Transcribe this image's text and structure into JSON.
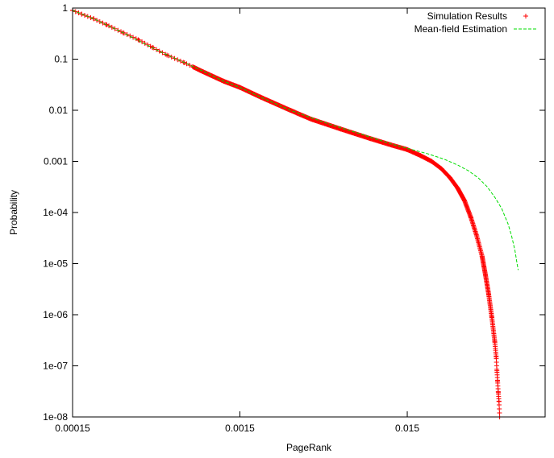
{
  "chart_data": {
    "type": "scatter",
    "title": "",
    "xlabel": "PageRank",
    "ylabel": "Probability",
    "xscale": "log",
    "yscale": "log",
    "xlim": [
      0.00015,
      0.1
    ],
    "ylim": [
      1e-08,
      1
    ],
    "xticks": [
      {
        "value": 0.00015,
        "label": "0.00015"
      },
      {
        "value": 0.0015,
        "label": "0.0015"
      },
      {
        "value": 0.015,
        "label": "0.015"
      }
    ],
    "yticks": [
      {
        "value": 1,
        "label": "1"
      },
      {
        "value": 0.1,
        "label": "0.1"
      },
      {
        "value": 0.01,
        "label": "0.01"
      },
      {
        "value": 0.001,
        "label": "0.001"
      },
      {
        "value": 0.0001,
        "label": "1e-04"
      },
      {
        "value": 1e-05,
        "label": "1e-05"
      },
      {
        "value": 1e-06,
        "label": "1e-06"
      },
      {
        "value": 1e-07,
        "label": "1e-07"
      },
      {
        "value": 1e-08,
        "label": "1e-08"
      }
    ],
    "grid": false,
    "legend": "top-right",
    "series": [
      {
        "name": "Simulation Results",
        "style": "points",
        "marker": "plus",
        "color": "#ff0000",
        "points": [
          [
            0.00015,
            0.9
          ],
          [
            0.00017,
            0.76
          ],
          [
            0.0002,
            0.62
          ],
          [
            0.00024,
            0.47
          ],
          [
            0.0003,
            0.33
          ],
          [
            0.00037,
            0.24
          ],
          [
            0.00045,
            0.17
          ],
          [
            0.00055,
            0.12
          ],
          [
            0.0007,
            0.085
          ],
          [
            0.0009,
            0.057
          ],
          [
            0.0012,
            0.037
          ],
          [
            0.0015,
            0.028
          ],
          [
            0.002,
            0.018
          ],
          [
            0.003,
            0.01
          ],
          [
            0.004,
            0.0067
          ],
          [
            0.006,
            0.0043
          ],
          [
            0.009,
            0.0028
          ],
          [
            0.012,
            0.0021
          ],
          [
            0.015,
            0.0017
          ],
          [
            0.018,
            0.0013
          ],
          [
            0.021,
            0.001
          ],
          [
            0.024,
            0.00072
          ],
          [
            0.027,
            0.00048
          ],
          [
            0.03,
            0.0003
          ],
          [
            0.033,
            0.00017
          ],
          [
            0.036,
            8e-05
          ],
          [
            0.039,
            3.5e-05
          ],
          [
            0.042,
            1.4e-05
          ],
          [
            0.044,
            6e-06
          ],
          [
            0.046,
            2.5e-06
          ],
          [
            0.048,
            9e-07
          ],
          [
            0.05,
            3e-07
          ],
          [
            0.051,
            1.5e-07
          ],
          [
            0.0515,
            8e-08
          ],
          [
            0.052,
            5e-08
          ],
          [
            0.0525,
            3e-08
          ],
          [
            0.053,
            2e-08
          ],
          [
            0.0535,
            1e-08
          ]
        ]
      },
      {
        "name": "Mean-field Estimation",
        "style": "line",
        "dash": "dashed",
        "color": "#00dd00",
        "points": [
          [
            0.00015,
            0.9
          ],
          [
            0.0002,
            0.62
          ],
          [
            0.0003,
            0.33
          ],
          [
            0.0005,
            0.14
          ],
          [
            0.0008,
            0.07
          ],
          [
            0.0012,
            0.037
          ],
          [
            0.0015,
            0.028
          ],
          [
            0.002,
            0.018
          ],
          [
            0.003,
            0.01
          ],
          [
            0.005,
            0.0055
          ],
          [
            0.008,
            0.0034
          ],
          [
            0.012,
            0.0022
          ],
          [
            0.015,
            0.0018
          ],
          [
            0.02,
            0.0014
          ],
          [
            0.025,
            0.0011
          ],
          [
            0.03,
            0.00085
          ],
          [
            0.035,
            0.00065
          ],
          [
            0.04,
            0.00047
          ],
          [
            0.045,
            0.00032
          ],
          [
            0.05,
            0.0002
          ],
          [
            0.055,
            0.00012
          ],
          [
            0.06,
            6e-05
          ],
          [
            0.063,
            3.5e-05
          ],
          [
            0.066,
            1.8e-05
          ],
          [
            0.068,
            1e-05
          ],
          [
            0.069,
            7.5e-06
          ]
        ]
      }
    ]
  }
}
